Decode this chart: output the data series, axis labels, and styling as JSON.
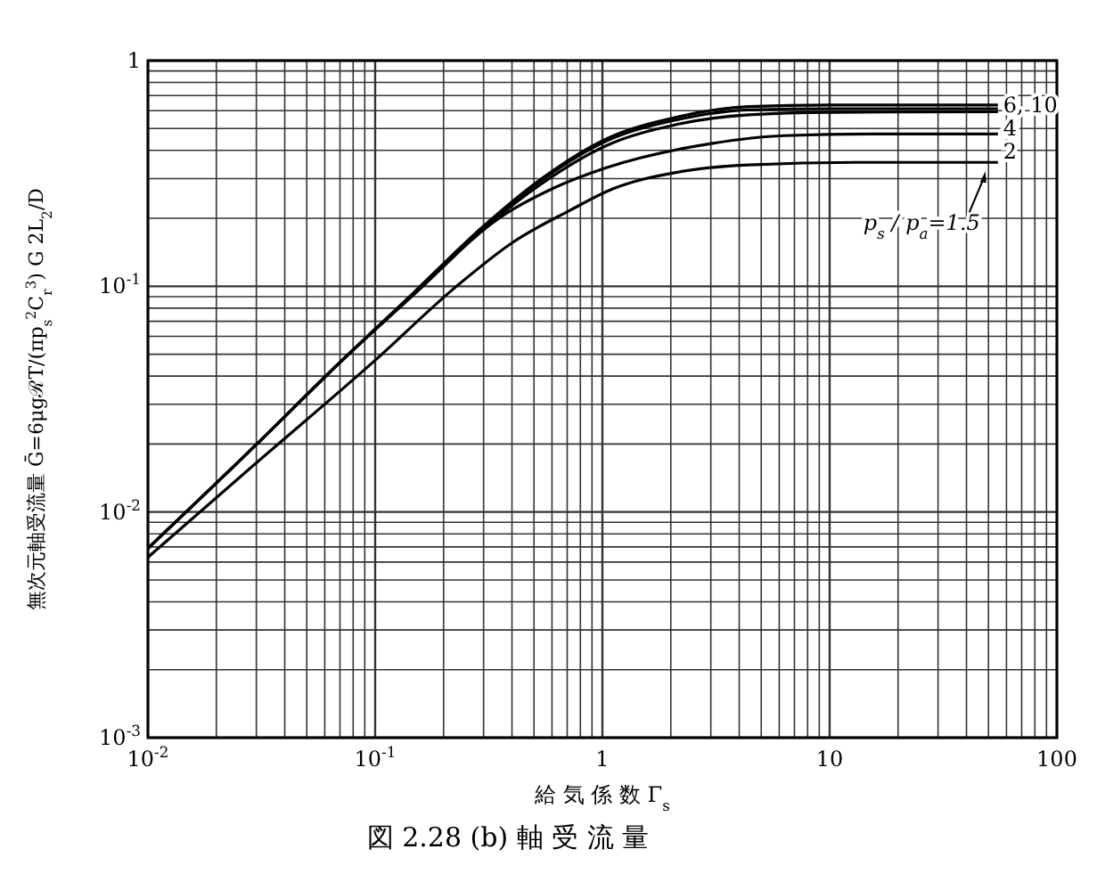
{
  "chart_data": {
    "type": "line",
    "title": "図 2.28 (b) 軸 受 流 量",
    "xlabel": "給 気 係 数 Γ$_{s}$",
    "ylabel": "無次元軸受流量 Ḡ=6μgℛT/(πp$_{s}$$^{2}$C$_{r}$$^{3}$) G 2L$_{2}$/D",
    "log": "xy",
    "grid": true,
    "marker": "none",
    "line_style": "solid",
    "xlim": [
      0.01,
      100
    ],
    "ylim": [
      0.001,
      1
    ],
    "xticks": [
      {
        "value": 0.01,
        "label": "10$^{-2}$"
      },
      {
        "value": 0.02,
        "label": null
      },
      {
        "value": 0.03,
        "label": null
      },
      {
        "value": 0.04,
        "label": null
      },
      {
        "value": 0.05,
        "label": null
      },
      {
        "value": 0.06,
        "label": null
      },
      {
        "value": 0.07,
        "label": null
      },
      {
        "value": 0.08,
        "label": null
      },
      {
        "value": 0.09,
        "label": null
      },
      {
        "value": 0.1,
        "label": "10$^{-1}$"
      },
      {
        "value": 0.2,
        "label": null
      },
      {
        "value": 0.3,
        "label": null
      },
      {
        "value": 0.4,
        "label": null
      },
      {
        "value": 0.5,
        "label": null
      },
      {
        "value": 0.6,
        "label": null
      },
      {
        "value": 0.7,
        "label": null
      },
      {
        "value": 0.8,
        "label": null
      },
      {
        "value": 0.9,
        "label": null
      },
      1,
      {
        "value": 2,
        "label": null
      },
      {
        "value": 3,
        "label": null
      },
      {
        "value": 4,
        "label": null
      },
      {
        "value": 5,
        "label": null
      },
      {
        "value": 6,
        "label": null
      },
      {
        "value": 7,
        "label": null
      },
      {
        "value": 8,
        "label": null
      },
      {
        "value": 9,
        "label": null
      },
      10,
      {
        "value": 20,
        "label": null
      },
      {
        "value": 30,
        "label": null
      },
      {
        "value": 40,
        "label": null
      },
      {
        "value": 50,
        "label": null
      },
      {
        "value": 60,
        "label": null
      },
      {
        "value": 70,
        "label": null
      },
      {
        "value": 80,
        "label": null
      },
      {
        "value": 90,
        "label": null
      },
      100
    ],
    "yticks": [
      {
        "value": 0.001,
        "label": "10$^{-3}$"
      },
      {
        "value": 0.002,
        "label": null
      },
      {
        "value": 0.003,
        "label": null
      },
      {
        "value": 0.004,
        "label": null
      },
      {
        "value": 0.005,
        "label": null
      },
      {
        "value": 0.006,
        "label": null
      },
      {
        "value": 0.007,
        "label": null
      },
      {
        "value": 0.008,
        "label": null
      },
      {
        "value": 0.009,
        "label": null
      },
      {
        "value": 0.01,
        "label": "10$^{-2}$"
      },
      {
        "value": 0.02,
        "label": null
      },
      {
        "value": 0.03,
        "label": null
      },
      {
        "value": 0.04,
        "label": null
      },
      {
        "value": 0.05,
        "label": null
      },
      {
        "value": 0.06,
        "label": null
      },
      {
        "value": 0.07,
        "label": null
      },
      {
        "value": 0.08,
        "label": null
      },
      {
        "value": 0.09,
        "label": null
      },
      {
        "value": 0.1,
        "label": "10$^{-1}$"
      },
      {
        "value": 0.2,
        "label": null
      },
      {
        "value": 0.3,
        "label": null
      },
      {
        "value": 0.4,
        "label": null
      },
      {
        "value": 0.5,
        "label": null
      },
      {
        "value": 0.6,
        "label": null
      },
      {
        "value": 0.7,
        "label": null
      },
      {
        "value": 0.8,
        "label": null
      },
      {
        "value": 0.9,
        "label": null
      },
      1
    ],
    "series": [
      {
        "name": "6, 10",
        "color": "#000000",
        "x": [
          0.01,
          0.03,
          0.07,
          0.15,
          0.3,
          0.54,
          1.04,
          2.1,
          4.4,
          10,
          55
        ],
        "values": [
          0.0069,
          0.0199,
          0.046,
          0.095,
          0.185,
          0.3,
          0.45,
          0.56,
          0.625,
          0.635,
          0.635
        ]
      },
      {
        "color": "#000000",
        "x": [
          0.15,
          0.3,
          0.54,
          1.04,
          2.1,
          4.4,
          10,
          55
        ],
        "values": [
          0.095,
          0.183,
          0.295,
          0.44,
          0.545,
          0.605,
          0.612,
          0.612
        ]
      },
      {
        "name": "4",
        "color": "#000000",
        "x": [
          0.01,
          0.03,
          0.07,
          0.15,
          0.3,
          0.54,
          1.04,
          2.1,
          4.4,
          10,
          55
        ],
        "values": [
          0.0069,
          0.0199,
          0.046,
          0.094,
          0.18,
          0.285,
          0.42,
          0.52,
          0.575,
          0.59,
          0.593
        ]
      },
      {
        "name": "2",
        "color": "#000000",
        "x": [
          0.01,
          0.03,
          0.07,
          0.15,
          0.35,
          0.6,
          1.04,
          3.06,
          6.3,
          15,
          55
        ],
        "values": [
          0.0069,
          0.0199,
          0.046,
          0.093,
          0.2,
          0.27,
          0.335,
          0.43,
          0.465,
          0.473,
          0.473
        ]
      },
      {
        "name": "p$_{s}$ / p$_{a}$=1.5",
        "color": "#000000",
        "x": [
          0.01,
          0.03,
          0.1,
          0.228,
          0.405,
          0.72,
          1.11,
          2.13,
          4.4,
          13,
          55
        ],
        "values": [
          0.0063,
          0.0165,
          0.047,
          0.1,
          0.157,
          0.217,
          0.27,
          0.32,
          0.345,
          0.354,
          0.354
        ]
      }
    ]
  }
}
